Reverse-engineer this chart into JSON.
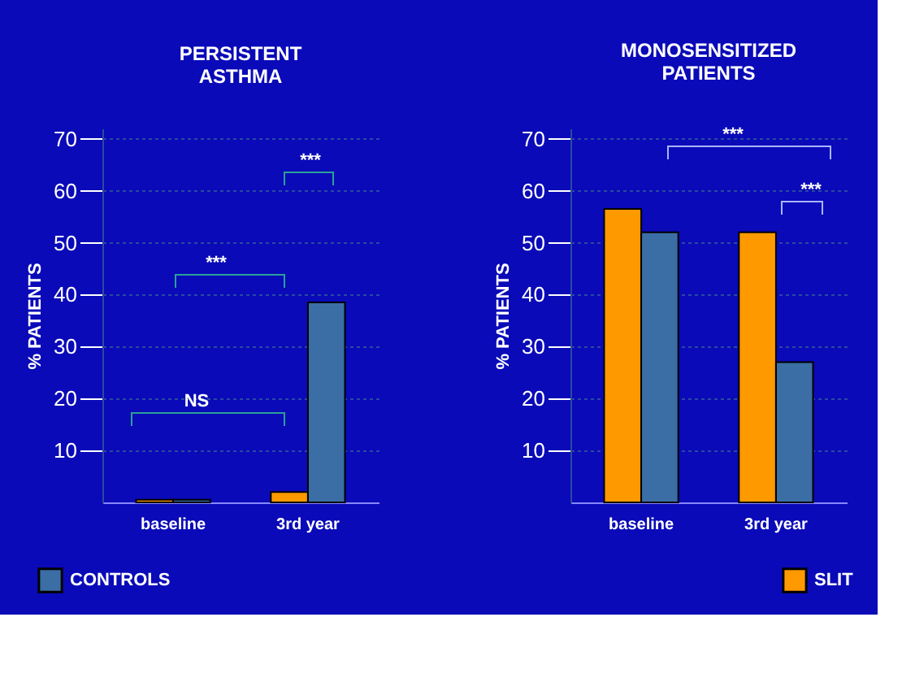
{
  "chart_data": [
    {
      "type": "bar",
      "title": "PERSISTENT ASTHMA",
      "ylabel": "% PATIENTS",
      "categories": [
        "baseline",
        "3rd year"
      ],
      "series": [
        {
          "color": "#ff9900",
          "values": [
            0.5,
            2
          ]
        },
        {
          "name": "CONTROLS",
          "color": "#3a6ea5",
          "values": [
            0.5,
            38.5
          ]
        }
      ],
      "ylim": [
        0,
        72
      ],
      "yticks": [
        10,
        20,
        30,
        40,
        50,
        60,
        70
      ],
      "grid": "y",
      "legend": "bottom left",
      "annotations": [
        "NS",
        "***",
        "***"
      ]
    },
    {
      "type": "bar",
      "title": "MONOSENSITIZED PATIENTS",
      "ylabel": "% PATIENTS",
      "categories": [
        "baseline",
        "3rd year"
      ],
      "series": [
        {
          "name": "SLIT",
          "color": "#ff9900",
          "values": [
            56.5,
            52
          ]
        },
        {
          "color": "#3a6ea5",
          "values": [
            52,
            27
          ]
        }
      ],
      "ylim": [
        0,
        72
      ],
      "yticks": [
        10,
        20,
        30,
        40,
        50,
        60,
        70
      ],
      "grid": "y",
      "legend": "bottom right",
      "annotations": [
        "***",
        "***"
      ]
    }
  ]
}
